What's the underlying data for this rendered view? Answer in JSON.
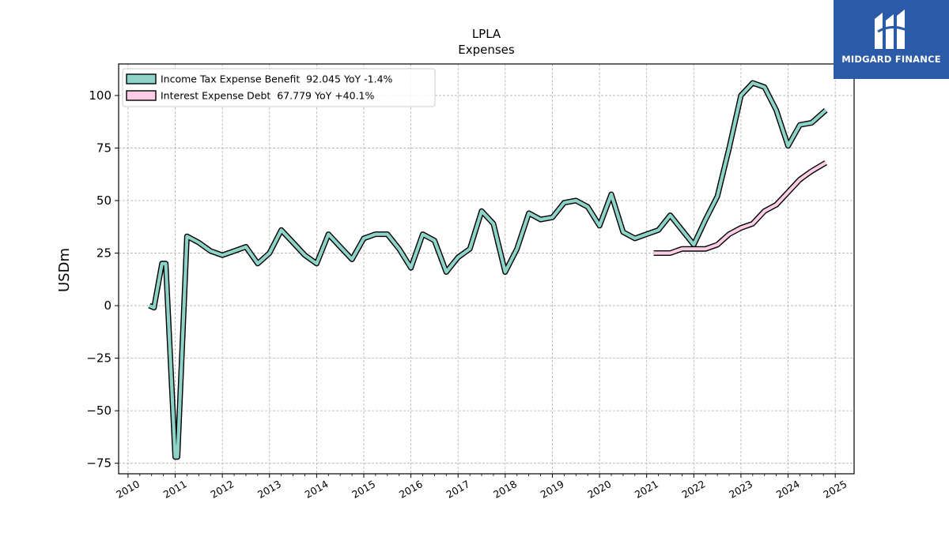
{
  "brand": {
    "name": "MIDGARD FINANCE",
    "background": "#2b5aa8",
    "icon": "midgard-logo-icon"
  },
  "chart_data": {
    "type": "line",
    "title": "LPLA",
    "subtitle": "Expenses",
    "xlabel": "",
    "ylabel": "USDm",
    "xlim": [
      2009.8,
      2025.4
    ],
    "ylim": [
      -80,
      115
    ],
    "grid": true,
    "legend_position": "top-left",
    "x_ticks": [
      "2010",
      "2011",
      "2012",
      "2013",
      "2014",
      "2015",
      "2016",
      "2017",
      "2018",
      "2019",
      "2020",
      "2021",
      "2022",
      "2023",
      "2024",
      "2025"
    ],
    "y_ticks": [
      100,
      75,
      50,
      25,
      0,
      -25,
      -50,
      -75
    ],
    "y_tick_labels": [
      "100",
      "75",
      "50",
      "25",
      "0",
      "−25",
      "−50",
      "−75"
    ],
    "series": [
      {
        "name": "Income Tax Expense Benefit",
        "legend_label": "Income Tax Expense Benefit  92.045 YoY -1.4%",
        "color": "#8dd3c7",
        "x": [
          2010.45,
          2010.55,
          2010.72,
          2010.8,
          2011.0,
          2011.05,
          2011.25,
          2011.5,
          2011.75,
          2012.0,
          2012.25,
          2012.5,
          2012.75,
          2013.0,
          2013.25,
          2013.5,
          2013.75,
          2014.0,
          2014.25,
          2014.5,
          2014.75,
          2015.0,
          2015.25,
          2015.5,
          2015.75,
          2016.0,
          2016.25,
          2016.5,
          2016.75,
          2017.0,
          2017.25,
          2017.5,
          2017.75,
          2018.0,
          2018.25,
          2018.5,
          2018.75,
          2019.0,
          2019.25,
          2019.5,
          2019.75,
          2020.0,
          2020.25,
          2020.5,
          2020.75,
          2021.0,
          2021.25,
          2021.5,
          2021.75,
          2022.0,
          2022.25,
          2022.5,
          2022.75,
          2023.0,
          2023.25,
          2023.5,
          2023.75,
          2024.0,
          2024.25,
          2024.5,
          2024.8
        ],
        "values": [
          0,
          -1,
          20,
          20,
          -72,
          -72,
          33,
          30,
          26,
          24,
          26,
          28,
          20,
          25,
          36,
          30,
          24,
          20,
          34,
          28,
          22,
          32,
          34,
          34,
          27,
          18,
          34,
          31,
          16,
          23,
          27,
          45,
          39,
          16,
          27,
          44,
          41,
          42,
          49,
          50,
          47,
          38,
          53,
          35,
          32,
          34,
          36,
          43,
          36,
          29,
          41,
          52,
          75,
          100,
          106,
          104,
          93,
          76,
          86,
          87,
          93
        ]
      },
      {
        "name": "Interest Expense Debt",
        "legend_label": "Interest Expense Debt  67.779 YoY +40.1%",
        "color": "#fccde5",
        "x": [
          2021.15,
          2021.25,
          2021.5,
          2021.75,
          2022.0,
          2022.25,
          2022.5,
          2022.75,
          2023.0,
          2023.25,
          2023.5,
          2023.75,
          2024.0,
          2024.25,
          2024.5,
          2024.8
        ],
        "values": [
          25,
          25,
          25,
          27,
          27,
          27,
          29,
          34,
          37,
          39,
          45,
          48,
          54,
          60,
          64,
          68
        ]
      }
    ]
  }
}
